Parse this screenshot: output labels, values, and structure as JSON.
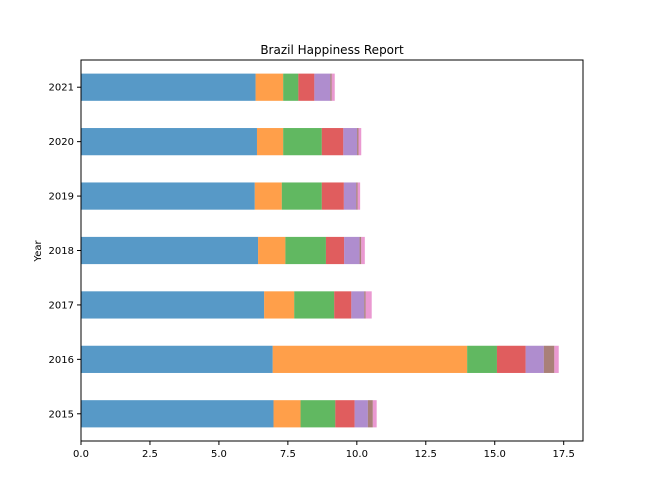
{
  "chart_data": {
    "type": "bar",
    "orientation": "horizontal",
    "stacked": true,
    "title": "Brazil Happiness Report",
    "xlabel": "",
    "ylabel": "Year",
    "xlim": [
      0,
      18.2
    ],
    "xticks": [
      "0.0",
      "2.5",
      "5.0",
      "7.5",
      "10.0",
      "12.5",
      "15.0",
      "17.5"
    ],
    "categories": [
      "2015",
      "2016",
      "2017",
      "2018",
      "2019",
      "2020",
      "2021"
    ],
    "grid": false,
    "legend": "none",
    "series": [
      {
        "color": "#1f77b4",
        "values": [
          6.98,
          6.95,
          6.64,
          6.42,
          6.3,
          6.38,
          6.33
        ]
      },
      {
        "color": "#ff7f0e",
        "values": [
          0.98,
          7.05,
          1.09,
          0.99,
          0.98,
          0.95,
          1.0
        ]
      },
      {
        "color": "#2ca02c",
        "values": [
          1.26,
          1.08,
          1.45,
          1.47,
          1.45,
          1.4,
          0.55
        ]
      },
      {
        "color": "#d62728",
        "values": [
          0.7,
          1.04,
          0.62,
          0.66,
          0.8,
          0.78,
          0.58
        ]
      },
      {
        "color": "#9467bd",
        "values": [
          0.48,
          0.66,
          0.47,
          0.56,
          0.45,
          0.5,
          0.58
        ]
      },
      {
        "color": "#8c564b",
        "values": [
          0.18,
          0.38,
          0.05,
          0.06,
          0.05,
          0.05,
          0.05
        ]
      },
      {
        "color": "#e377c2",
        "values": [
          0.14,
          0.16,
          0.22,
          0.13,
          0.09,
          0.1,
          0.11
        ]
      }
    ]
  }
}
